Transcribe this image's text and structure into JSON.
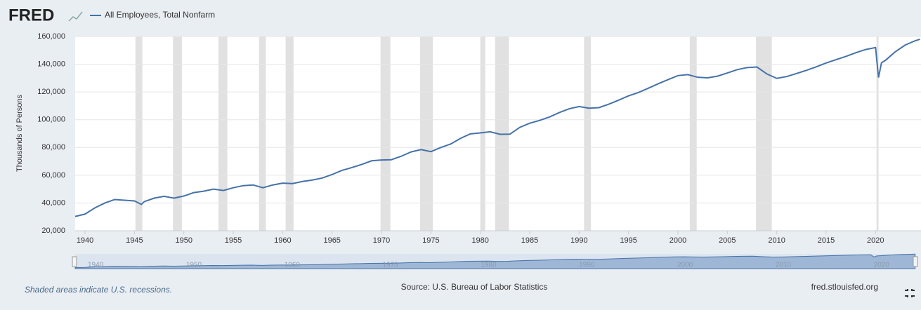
{
  "logo": "FRED",
  "note": "Shaded areas indicate U.S. recessions.",
  "source": "Source: U.S. Bureau of Labor Statistics",
  "link": "fred.stlouisfed.org",
  "chart_data": {
    "type": "line",
    "y_label": "Thousands of Persons",
    "x": [
      1939,
      1940,
      1941,
      1942,
      1943,
      1944,
      1945,
      1945.7,
      1946,
      1947,
      1948,
      1949,
      1950,
      1951,
      1952,
      1953,
      1954,
      1955,
      1956,
      1957,
      1958,
      1959,
      1960,
      1961,
      1962,
      1963,
      1964,
      1965,
      1966,
      1967,
      1968,
      1969,
      1970,
      1971,
      1972,
      1973,
      1974,
      1975,
      1976,
      1977,
      1978,
      1979,
      1980,
      1981,
      1982,
      1983,
      1984,
      1985,
      1986,
      1987,
      1988,
      1989,
      1990,
      1991,
      1992,
      1993,
      1994,
      1995,
      1996,
      1997,
      1998,
      1999,
      2000,
      2001,
      2002,
      2003,
      2004,
      2005,
      2006,
      2007,
      2008,
      2009,
      2010,
      2011,
      2012,
      2013,
      2014,
      2015,
      2016,
      2017,
      2018,
      2019,
      2020,
      2020.3,
      2020.6,
      2021,
      2022,
      2023,
      2024,
      2024.5
    ],
    "series": [
      {
        "name": "All Employees, Total Nonfarm",
        "color": "#4572a7",
        "values": [
          30300,
          32000,
          36500,
          40000,
          42500,
          42000,
          41500,
          39000,
          41000,
          43500,
          44800,
          43500,
          45000,
          47500,
          48500,
          50000,
          49000,
          51000,
          52500,
          53000,
          51000,
          53000,
          54300,
          54000,
          55500,
          56500,
          58000,
          60500,
          63500,
          65500,
          67800,
          70400,
          71000,
          71200,
          73700,
          76800,
          78500,
          77000,
          80000,
          82500,
          86600,
          89800,
          90500,
          91300,
          89500,
          89600,
          94500,
          97500,
          99500,
          102000,
          105200,
          107900,
          109500,
          108300,
          108700,
          111200,
          114100,
          117200,
          119600,
          122700,
          125900,
          128900,
          131800,
          132500,
          130600,
          130200,
          131400,
          133700,
          136100,
          137600,
          138000,
          133000,
          129800,
          131100,
          133300,
          135600,
          138100,
          140900,
          143300,
          145600,
          148300,
          150600,
          152000,
          130400,
          141000,
          142800,
          149000,
          153800,
          156900,
          158000
        ]
      }
    ],
    "recessions": [
      [
        1945.1,
        1945.8
      ],
      [
        1948.9,
        1949.8
      ],
      [
        1953.5,
        1954.4
      ],
      [
        1957.6,
        1958.3
      ],
      [
        1960.3,
        1961.1
      ],
      [
        1969.9,
        1970.9
      ],
      [
        1973.9,
        1975.2
      ],
      [
        1980.0,
        1980.5
      ],
      [
        1981.5,
        1982.9
      ],
      [
        1990.5,
        1991.2
      ],
      [
        2001.2,
        2001.9
      ],
      [
        2007.9,
        2009.5
      ],
      [
        2020.1,
        2020.3
      ]
    ],
    "xlim": [
      1939,
      2024.6
    ],
    "xticks": [
      1940,
      1945,
      1950,
      1955,
      1960,
      1965,
      1970,
      1975,
      1980,
      1985,
      1990,
      1995,
      2000,
      2005,
      2010,
      2015,
      2020
    ],
    "ylim": [
      20000,
      160000
    ],
    "yticks": [
      {
        "value": 20000,
        "label": "20,000"
      },
      {
        "value": 40000,
        "label": "40,000"
      },
      {
        "value": 60000,
        "label": "60,000"
      },
      {
        "value": 80000,
        "label": "80,000"
      },
      {
        "value": 100000,
        "label": "100,000"
      },
      {
        "value": 120000,
        "label": "120,000"
      },
      {
        "value": 140000,
        "label": "140,000"
      },
      {
        "value": 160000,
        "label": "160,000"
      }
    ],
    "grid": true
  }
}
